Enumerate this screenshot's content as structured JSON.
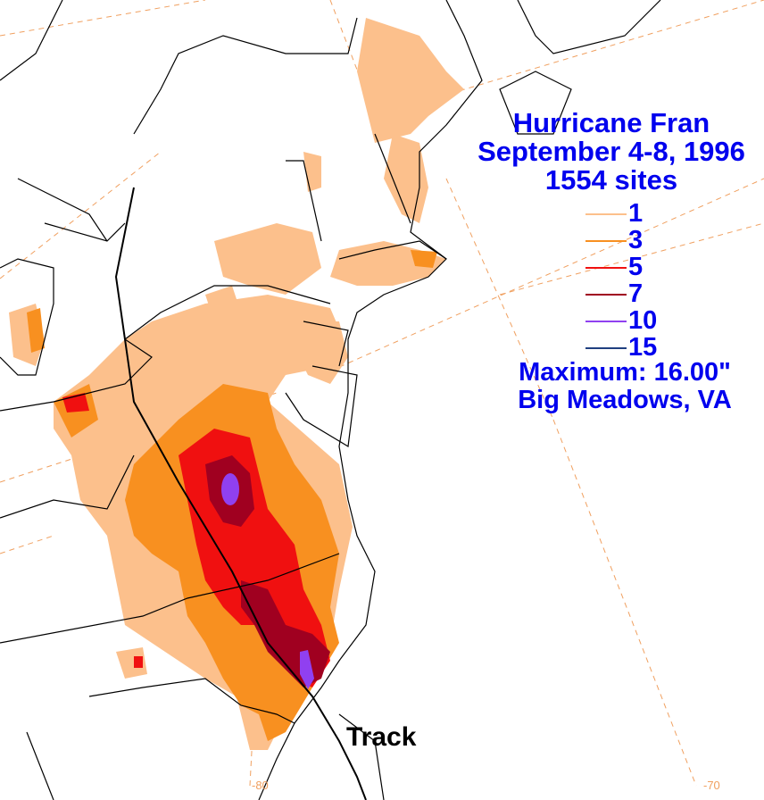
{
  "title": {
    "line1": "Hurricane Fran",
    "line2": "September 4-8, 1996",
    "line3": "1554 sites"
  },
  "legend": [
    {
      "label": "1",
      "color": "#fcc08c"
    },
    {
      "label": "3",
      "color": "#f89020"
    },
    {
      "label": "5",
      "color": "#f01010"
    },
    {
      "label": "7",
      "color": "#a00020"
    },
    {
      "label": "10",
      "color": "#9040f0"
    },
    {
      "label": "15",
      "color": "#204080"
    }
  ],
  "maximum": {
    "line1": "Maximum:  16.00\"",
    "line2": "Big Meadows, VA"
  },
  "track_label": "Track",
  "longitude_labels": [
    "-80",
    "-70"
  ],
  "colors": {
    "text_blue": "#0000ee",
    "grid": "#f0a060",
    "border": "#000000"
  }
}
